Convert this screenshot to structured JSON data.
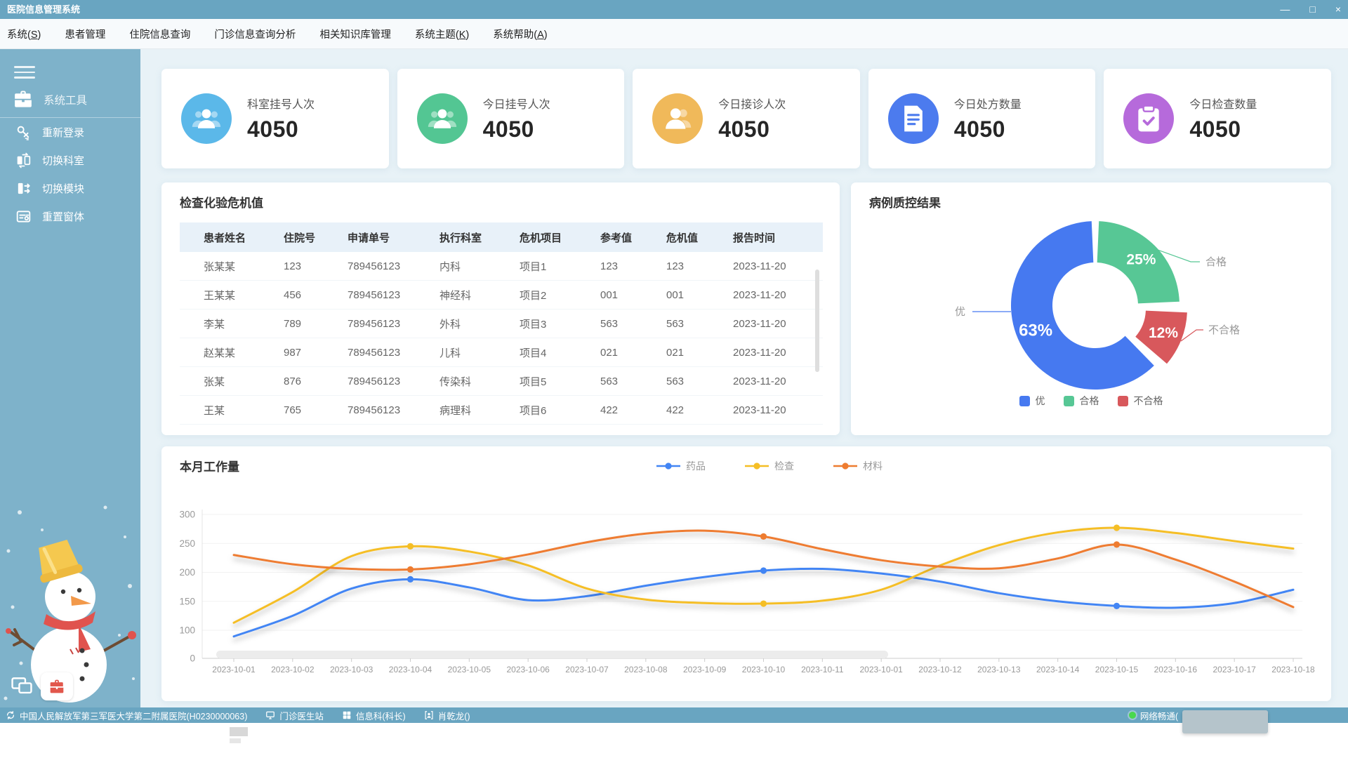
{
  "window": {
    "title": "医院信息管理系统",
    "minimize": "—",
    "maximize": "□",
    "close": "×"
  },
  "menu": {
    "items": [
      "系统(S)",
      "患者管理",
      "住院信息查询",
      "门诊信息查询分析",
      "相关知识库管理",
      "系统主题(K)",
      "系统帮助(A)"
    ]
  },
  "sidebar": {
    "group": {
      "label": "系统工具",
      "icon": "briefcase-icon"
    },
    "items": [
      {
        "label": "重新登录",
        "icon": "key-icon"
      },
      {
        "label": "切换科室",
        "icon": "switch-dept-icon"
      },
      {
        "label": "切换模块",
        "icon": "switch-module-icon"
      },
      {
        "label": "重置窗体",
        "icon": "reset-window-icon"
      }
    ]
  },
  "stat_cards": [
    {
      "label": "科室挂号人次",
      "value": "4050",
      "color": "#5BB8E9",
      "icon": "users-icon"
    },
    {
      "label": "今日挂号人次",
      "value": "4050",
      "color": "#53C693",
      "icon": "users-icon"
    },
    {
      "label": "今日接诊人次",
      "value": "4050",
      "color": "#F0B95A",
      "icon": "user-icon"
    },
    {
      "label": "今日处方数量",
      "value": "4050",
      "color": "#4C7BEE",
      "icon": "prescription-icon"
    },
    {
      "label": "今日检查数量",
      "value": "4050",
      "color": "#B66ADB",
      "icon": "clipboard-icon"
    }
  ],
  "crisis_table": {
    "title": "检查化验危机值",
    "columns": [
      "患者姓名",
      "住院号",
      "申请单号",
      "执行科室",
      "危机项目",
      "参考值",
      "危机值",
      "报告时间"
    ],
    "rows": [
      [
        "张某某",
        "123",
        "789456123",
        "内科",
        "项目1",
        "123",
        "123",
        "2023-11-20"
      ],
      [
        "王某某",
        "456",
        "789456123",
        "神经科",
        "项目2",
        "001",
        "001",
        "2023-11-20"
      ],
      [
        "李某",
        "789",
        "789456123",
        "外科",
        "项目3",
        "563",
        "563",
        "2023-11-20"
      ],
      [
        "赵某某",
        "987",
        "789456123",
        "儿科",
        "项目4",
        "021",
        "021",
        "2023-11-20"
      ],
      [
        "张某",
        "876",
        "789456123",
        "传染科",
        "项目5",
        "563",
        "563",
        "2023-11-20"
      ],
      [
        "王某",
        "765",
        "789456123",
        "病理科",
        "项目6",
        "422",
        "422",
        "2023-11-20"
      ]
    ]
  },
  "chart_data": [
    {
      "type": "pie",
      "title": "病例质控结果",
      "donut": true,
      "slices": [
        {
          "label": "优",
          "value": 63,
          "color": "#4679F0"
        },
        {
          "label": "合格",
          "value": 25,
          "color": "#57C795"
        },
        {
          "label": "不合格",
          "value": 12,
          "color": "#D8585C"
        }
      ],
      "data_labels": [
        "63%",
        "25%",
        "12%"
      ],
      "legend": [
        "优",
        "合格",
        "不合格"
      ],
      "legend_position": "bottom"
    },
    {
      "type": "line",
      "title": "本月工作量",
      "x": [
        "2023-10-01",
        "2023-10-02",
        "2023-10-03",
        "2023-10-04",
        "2023-10-05",
        "2023-10-06",
        "2023-10-07",
        "2023-10-08",
        "2023-10-09",
        "2023-10-10",
        "2023-10-11",
        "2023-10-01",
        "2023-10-12",
        "2023-10-13",
        "2023-10-14",
        "2023-10-15",
        "2023-10-16",
        "2023-10-17",
        "2023-10-18"
      ],
      "series": [
        {
          "name": "药品",
          "color": "#4285F4",
          "values": [
            78,
            125,
            172,
            188,
            174,
            152,
            159,
            177,
            192,
            203,
            206,
            198,
            184,
            164,
            150,
            142,
            139,
            147,
            170
          ]
        },
        {
          "name": "检查",
          "color": "#F5BE25",
          "values": [
            113,
            166,
            228,
            245,
            236,
            212,
            172,
            153,
            147,
            146,
            151,
            170,
            212,
            247,
            269,
            277,
            268,
            254,
            241
          ]
        },
        {
          "name": "材料",
          "color": "#EE7C30",
          "values": [
            230,
            214,
            206,
            205,
            214,
            231,
            252,
            267,
            272,
            262,
            240,
            221,
            210,
            207,
            224,
            248,
            222,
            184,
            140
          ]
        }
      ],
      "ylim": [
        0,
        300
      ],
      "yticks": [
        0,
        100,
        150,
        200,
        250,
        300
      ],
      "grid": true,
      "legend_position": "top",
      "marked_point_indices": [
        3,
        9,
        15
      ]
    }
  ],
  "statusbar": {
    "hospital": "中国人民解放军第三军医大学第二附属医院(H0230000063)",
    "items": [
      {
        "label": "门诊医生站",
        "icon": "monitor-icon"
      },
      {
        "label": "信息科(科长)",
        "icon": "grid-icon"
      },
      {
        "label": "肖乾龙()",
        "icon": "user-badge-icon"
      }
    ],
    "network": {
      "label": "网络畅通(",
      "status_color": "#49D84D"
    }
  }
}
